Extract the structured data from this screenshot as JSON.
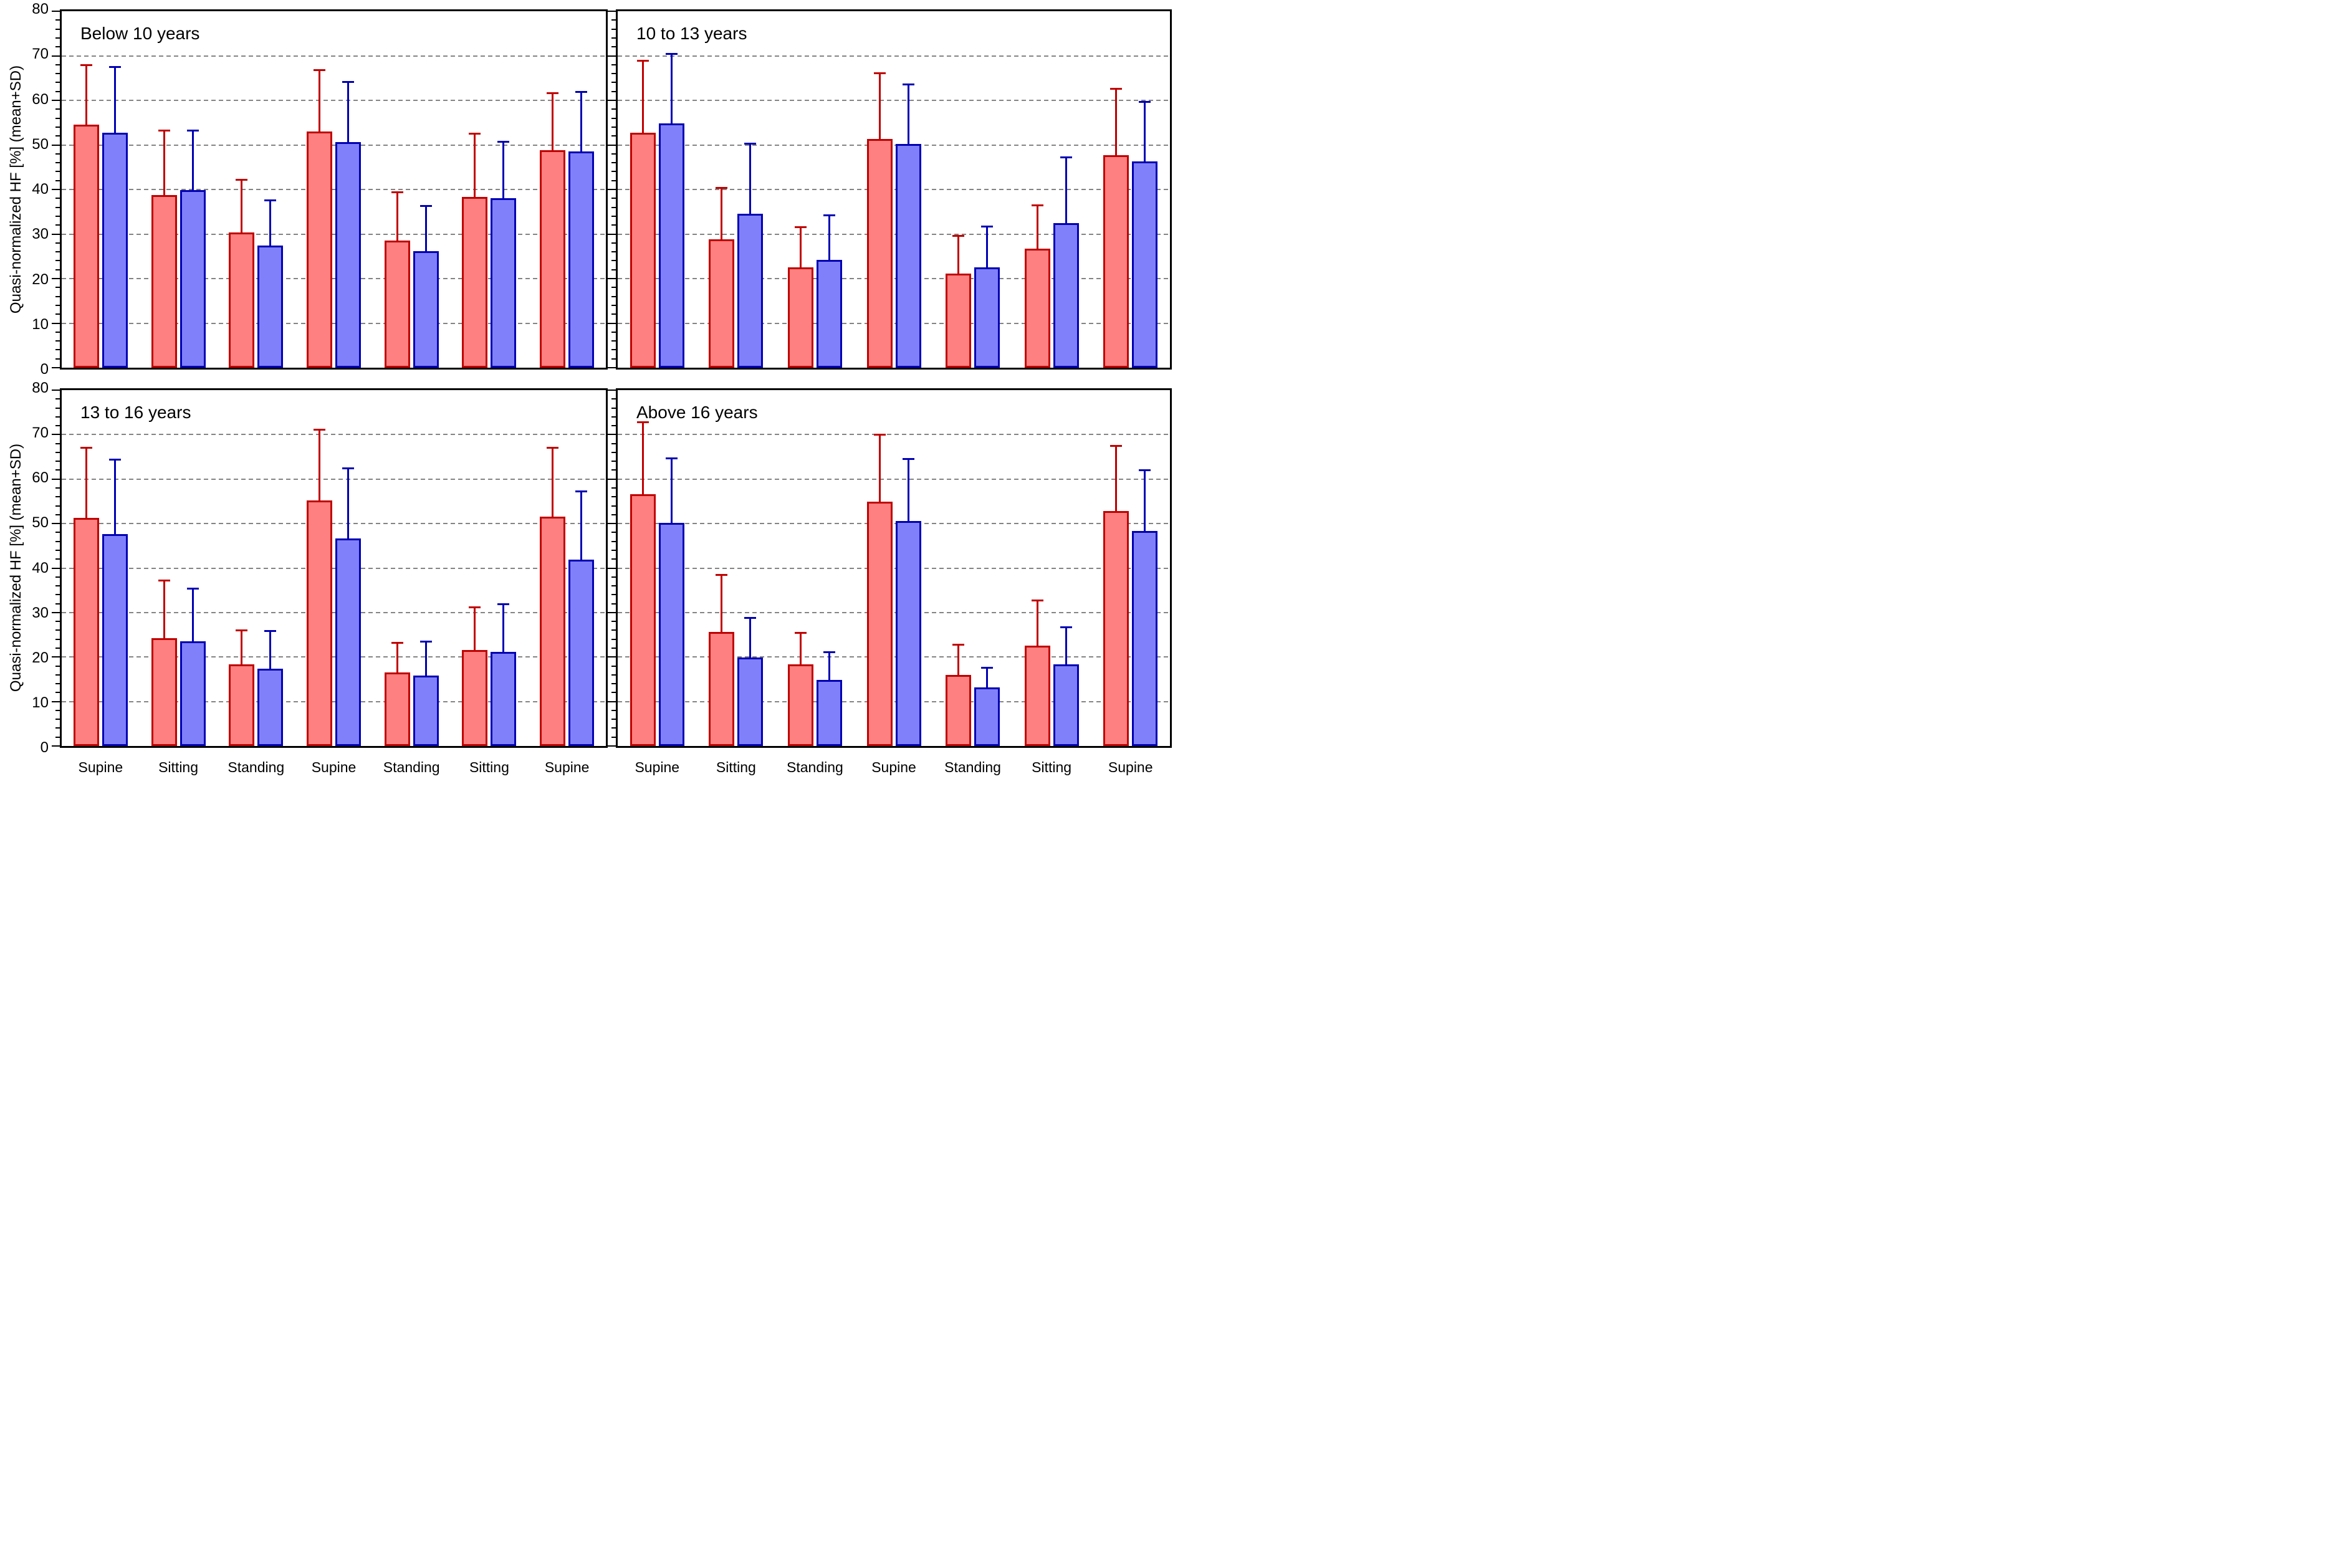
{
  "figure": {
    "background": "#FFFFFF",
    "gridline_color": "#848484",
    "axis_color": "#000000"
  },
  "axis": {
    "ylabel": "Quasi-normalized HF [%] (mean+SD)",
    "yticks": [
      0,
      10,
      20,
      30,
      40,
      50,
      60,
      70,
      80
    ],
    "minor_tick_step": 2,
    "ylim": [
      0,
      80
    ],
    "grid": "horizontal-dashed"
  },
  "series_colors": {
    "red_fill": "#FF8080",
    "red_edge": "#C00000",
    "blue_fill": "#8080FB",
    "blue_edge": "#0000B3"
  },
  "chart_data": [
    {
      "type": "bar",
      "title": "Below 10 years",
      "position": "top-left",
      "ylim": [
        0,
        80
      ],
      "categories": [
        "Supine",
        "Sitting",
        "Standing",
        "Supine",
        "Standing",
        "Sitting",
        "Supine"
      ],
      "series": [
        {
          "name": "red",
          "color": "#FF8080",
          "edge": "#C00000",
          "means": [
            54.5,
            38.7,
            30.3,
            53.0,
            28.5,
            38.3,
            48.8
          ],
          "sds": [
            13.5,
            14.6,
            12.0,
            13.8,
            10.9,
            14.3,
            12.9
          ]
        },
        {
          "name": "blue",
          "color": "#8080FB",
          "edge": "#0000B3",
          "means": [
            52.7,
            39.9,
            27.4,
            50.6,
            26.1,
            38.1,
            48.6
          ],
          "sds": [
            14.9,
            13.4,
            10.2,
            13.6,
            10.3,
            12.7,
            13.4
          ]
        }
      ]
    },
    {
      "type": "bar",
      "title": "10 to 13 years",
      "position": "top-right",
      "ylim": [
        0,
        80
      ],
      "categories": [
        "Supine",
        "Sitting",
        "Standing",
        "Supine",
        "Standing",
        "Sitting",
        "Supine"
      ],
      "series": [
        {
          "name": "red",
          "color": "#FF8080",
          "edge": "#C00000",
          "means": [
            52.7,
            28.8,
            22.5,
            51.4,
            21.1,
            26.7,
            47.7
          ],
          "sds": [
            16.3,
            11.6,
            9.1,
            14.8,
            8.6,
            9.8,
            15.0
          ]
        },
        {
          "name": "blue",
          "color": "#8080FB",
          "edge": "#0000B3",
          "means": [
            54.8,
            34.5,
            24.2,
            50.2,
            22.5,
            32.5,
            46.3
          ],
          "sds": [
            15.7,
            15.8,
            10.0,
            13.4,
            9.3,
            14.8,
            13.4
          ]
        }
      ]
    },
    {
      "type": "bar",
      "title": "13 to 16 years",
      "position": "bottom-left",
      "ylim": [
        0,
        80
      ],
      "categories": [
        "Supine",
        "Sitting",
        "Standing",
        "Supine",
        "Standing",
        "Sitting",
        "Supine"
      ],
      "series": [
        {
          "name": "red",
          "color": "#FF8080",
          "edge": "#C00000",
          "means": [
            51.3,
            24.2,
            18.3,
            55.2,
            16.5,
            21.6,
            51.5
          ],
          "sds": [
            15.8,
            13.1,
            7.7,
            16.0,
            6.8,
            9.7,
            15.6
          ]
        },
        {
          "name": "blue",
          "color": "#8080FB",
          "edge": "#0000B3",
          "means": [
            47.6,
            23.5,
            17.4,
            46.6,
            15.9,
            21.2,
            41.9
          ],
          "sds": [
            16.8,
            12.0,
            8.5,
            15.9,
            7.6,
            10.8,
            15.4
          ]
        }
      ]
    },
    {
      "type": "bar",
      "title": "Above 16 years",
      "position": "bottom-right",
      "ylim": [
        0,
        80
      ],
      "categories": [
        "Supine",
        "Sitting",
        "Standing",
        "Supine",
        "Standing",
        "Sitting",
        "Supine"
      ],
      "series": [
        {
          "name": "red",
          "color": "#FF8080",
          "edge": "#C00000",
          "means": [
            56.6,
            25.7,
            18.4,
            54.9,
            16.0,
            22.6,
            52.8
          ],
          "sds": [
            16.3,
            12.8,
            7.1,
            15.1,
            6.9,
            10.2,
            14.7
          ]
        },
        {
          "name": "blue",
          "color": "#8080FB",
          "edge": "#0000B3",
          "means": [
            50.1,
            19.9,
            14.9,
            50.6,
            13.2,
            18.3,
            48.4
          ],
          "sds": [
            14.6,
            9.0,
            6.2,
            14.0,
            4.5,
            8.4,
            13.7
          ]
        }
      ]
    }
  ]
}
